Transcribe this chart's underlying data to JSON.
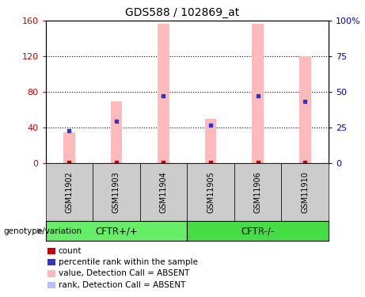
{
  "title": "GDS588 / 102869_at",
  "samples": [
    "GSM11902",
    "GSM11903",
    "GSM11904",
    "GSM11905",
    "GSM11906",
    "GSM11910"
  ],
  "pink_bar_values": [
    35,
    70,
    157,
    50,
    157,
    120
  ],
  "blue_marker_values": [
    37,
    47,
    76,
    43,
    76,
    70
  ],
  "red_dot_values": [
    1,
    1,
    1,
    1,
    1,
    1
  ],
  "ylim_left": [
    0,
    160
  ],
  "ylim_right": [
    0,
    100
  ],
  "yticks_left": [
    0,
    40,
    80,
    120,
    160
  ],
  "yticks_right": [
    0,
    25,
    50,
    75,
    100
  ],
  "ytick_labels_left": [
    "0",
    "40",
    "80",
    "120",
    "160"
  ],
  "ytick_labels_right": [
    "0",
    "25",
    "50",
    "75",
    "100%"
  ],
  "grid_yticks": [
    40,
    80,
    120
  ],
  "groups": [
    {
      "label": "CFTR+/+",
      "indices": [
        0,
        1,
        2
      ],
      "color": "#66ee66"
    },
    {
      "label": "CFTR-/-",
      "indices": [
        3,
        4,
        5
      ],
      "color": "#44dd44"
    }
  ],
  "genotype_label": "genotype/variation",
  "legend_items": [
    {
      "color": "#cc0000",
      "label": "count"
    },
    {
      "color": "#3333cc",
      "label": "percentile rank within the sample"
    },
    {
      "color": "#ffbbbb",
      "label": "value, Detection Call = ABSENT"
    },
    {
      "color": "#bbbbff",
      "label": "rank, Detection Call = ABSENT"
    }
  ],
  "bar_color": "#ffbbbb",
  "blue_color": "#3333cc",
  "red_color": "#cc0000",
  "left_tick_color": "#cc0000",
  "right_tick_color": "#0000cc",
  "sample_area_color": "#cccccc",
  "bar_width": 0.25
}
